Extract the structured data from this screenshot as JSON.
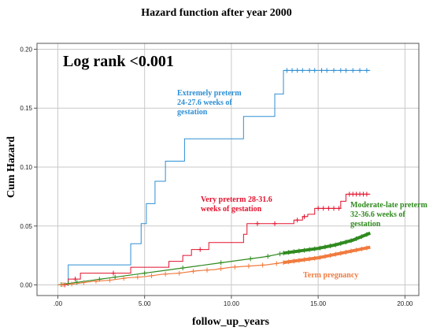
{
  "chart_data": {
    "type": "line",
    "title": "Hazard function after year 2000",
    "xlabel": "follow_up_years",
    "ylabel": "Cum Hazard",
    "xlim": [
      -1.2,
      20.8
    ],
    "ylim": [
      -0.009,
      0.205
    ],
    "x_ticks": [
      0,
      5,
      10,
      15,
      20
    ],
    "x_tick_labels": [
      ".00",
      "5.00",
      "10.00",
      "15.00",
      "20.00"
    ],
    "y_ticks": [
      0,
      0.05,
      0.1,
      0.15,
      0.2
    ],
    "y_tick_labels": [
      "0.00",
      "0.05",
      "0.10",
      "0.15",
      "0.20"
    ],
    "grid": true,
    "annotation": "Log rank <0.001",
    "series": [
      {
        "name": "Extremely preterm 24-27.6 weeks of gestation",
        "label_lines": [
          "Extremely preterm",
          "24-27.6  weeks of",
          "gestation"
        ],
        "color": "#2e8fd4",
        "step": true,
        "points": [
          [
            0,
            0
          ],
          [
            0.6,
            0
          ],
          [
            0.6,
            0.017
          ],
          [
            4.2,
            0.017
          ],
          [
            4.2,
            0.035
          ],
          [
            4.8,
            0.035
          ],
          [
            4.8,
            0.052
          ],
          [
            5.1,
            0.052
          ],
          [
            5.1,
            0.069
          ],
          [
            5.6,
            0.069
          ],
          [
            5.6,
            0.088
          ],
          [
            6.2,
            0.088
          ],
          [
            6.2,
            0.105
          ],
          [
            7.3,
            0.105
          ],
          [
            7.3,
            0.124
          ],
          [
            10.7,
            0.124
          ],
          [
            10.7,
            0.143
          ],
          [
            12.5,
            0.143
          ],
          [
            12.5,
            0.162
          ],
          [
            13.0,
            0.162
          ],
          [
            13.0,
            0.182
          ],
          [
            18.0,
            0.182
          ]
        ],
        "censored": [
          13.2,
          13.5,
          13.8,
          14.1,
          14.5,
          14.8,
          15.2,
          15.5,
          15.9,
          16.3,
          16.6,
          17.0,
          17.4,
          17.8
        ]
      },
      {
        "name": "Very  preterm 28-31.6 weeks of gestation",
        "label_lines": [
          "Very  preterm 28-31.6",
          "weeks of gestation"
        ],
        "color": "#e3122d",
        "step": true,
        "points": [
          [
            0,
            0
          ],
          [
            0.6,
            0
          ],
          [
            0.6,
            0.005
          ],
          [
            1.3,
            0.005
          ],
          [
            1.3,
            0.01
          ],
          [
            4.2,
            0.01
          ],
          [
            4.2,
            0.015
          ],
          [
            6.4,
            0.015
          ],
          [
            6.4,
            0.02
          ],
          [
            7.2,
            0.02
          ],
          [
            7.2,
            0.025
          ],
          [
            7.7,
            0.025
          ],
          [
            7.7,
            0.03
          ],
          [
            8.7,
            0.03
          ],
          [
            8.7,
            0.036
          ],
          [
            10.7,
            0.036
          ],
          [
            10.7,
            0.043
          ],
          [
            10.9,
            0.043
          ],
          [
            10.9,
            0.052
          ],
          [
            13.6,
            0.052
          ],
          [
            13.6,
            0.055
          ],
          [
            14.1,
            0.055
          ],
          [
            14.1,
            0.058
          ],
          [
            14.4,
            0.058
          ],
          [
            14.4,
            0.06
          ],
          [
            14.8,
            0.06
          ],
          [
            14.8,
            0.065
          ],
          [
            16.3,
            0.065
          ],
          [
            16.3,
            0.071
          ],
          [
            16.6,
            0.071
          ],
          [
            16.6,
            0.077
          ],
          [
            18.0,
            0.077
          ]
        ],
        "censored": [
          0.4,
          1.0,
          3.2,
          8.2,
          11.5,
          12.5,
          13.8,
          14.2,
          15.0,
          15.3,
          15.6,
          15.9,
          16.2,
          16.8,
          17.0,
          17.2,
          17.4,
          17.6,
          17.8
        ]
      },
      {
        "name": "Moderate-late preterm 32-36.6  weeks of gestation",
        "label_lines": [
          "Moderate-late preterm",
          "32-36.6  weeks of",
          "gestation"
        ],
        "color": "#2f8a1f",
        "step": false,
        "points": [
          [
            0,
            0
          ],
          [
            1,
            0.002
          ],
          [
            2,
            0.004
          ],
          [
            3,
            0.006
          ],
          [
            4,
            0.008
          ],
          [
            5,
            0.01
          ],
          [
            6,
            0.012
          ],
          [
            7,
            0.014
          ],
          [
            8,
            0.016
          ],
          [
            9,
            0.018
          ],
          [
            10,
            0.02
          ],
          [
            11,
            0.022
          ],
          [
            12,
            0.024
          ],
          [
            13,
            0.027
          ],
          [
            14,
            0.029
          ],
          [
            15,
            0.031
          ],
          [
            16,
            0.034
          ],
          [
            17,
            0.038
          ],
          [
            18,
            0.044
          ]
        ],
        "censored": [
          0.2,
          0.6,
          1.1,
          2.4,
          3.3,
          5.0,
          7.2,
          9.4,
          11.1,
          12.1,
          12.8,
          13.0,
          13.3,
          13.6,
          13.9,
          14.2,
          14.5,
          14.8,
          15.1,
          15.4,
          15.7,
          16.0,
          16.3,
          16.6,
          16.9,
          17.2,
          17.5,
          17.8
        ]
      },
      {
        "name": "Term pregnancy",
        "label_lines": [
          "Term pregnancy"
        ],
        "color": "#f07b3f",
        "step": false,
        "points": [
          [
            0,
            0
          ],
          [
            1,
            0.001
          ],
          [
            2,
            0.003
          ],
          [
            3,
            0.004
          ],
          [
            4,
            0.006
          ],
          [
            5,
            0.007
          ],
          [
            6,
            0.009
          ],
          [
            7,
            0.01
          ],
          [
            8,
            0.012
          ],
          [
            9,
            0.013
          ],
          [
            10,
            0.015
          ],
          [
            11,
            0.016
          ],
          [
            12,
            0.017
          ],
          [
            13,
            0.019
          ],
          [
            14,
            0.021
          ],
          [
            15,
            0.023
          ],
          [
            16,
            0.026
          ],
          [
            17,
            0.029
          ],
          [
            18,
            0.032
          ]
        ],
        "censored": [
          0.3,
          0.8,
          1.5,
          2.2,
          3.0,
          3.8,
          4.6,
          5.4,
          6.2,
          7.0,
          7.8,
          8.6,
          9.4,
          10.2,
          11.0,
          11.8,
          12.6,
          13.0,
          13.3,
          13.6,
          13.9,
          14.2,
          14.5,
          14.8,
          15.1,
          15.4,
          15.7,
          16.0,
          16.3,
          16.6,
          16.9,
          17.2,
          17.5,
          17.8
        ]
      }
    ]
  }
}
